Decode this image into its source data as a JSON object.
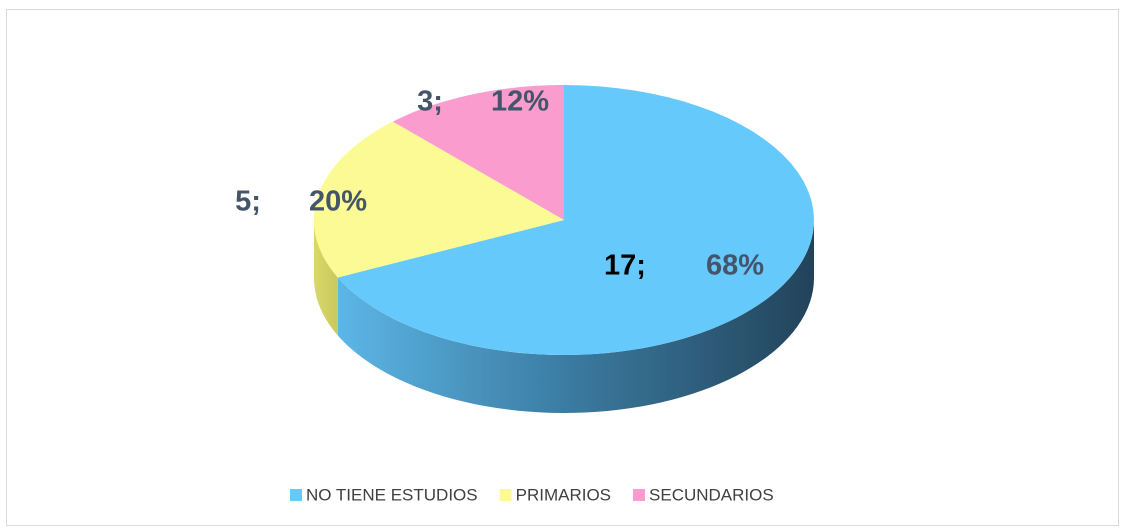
{
  "chart_data": {
    "type": "pie3d",
    "categories": [
      "NO TIENE ESTUDIOS",
      "PRIMARIOS",
      "SECUNDARIOS"
    ],
    "values": [
      17,
      5,
      3
    ],
    "value_labels": [
      "17;",
      "5;",
      "3;"
    ],
    "percentages": [
      68,
      20,
      12
    ],
    "percentage_labels": [
      "68%",
      "20%",
      "12%"
    ],
    "colors": [
      "#66c9fb",
      "#fbfa94",
      "#fb9ccf"
    ],
    "legend": "bottom"
  }
}
